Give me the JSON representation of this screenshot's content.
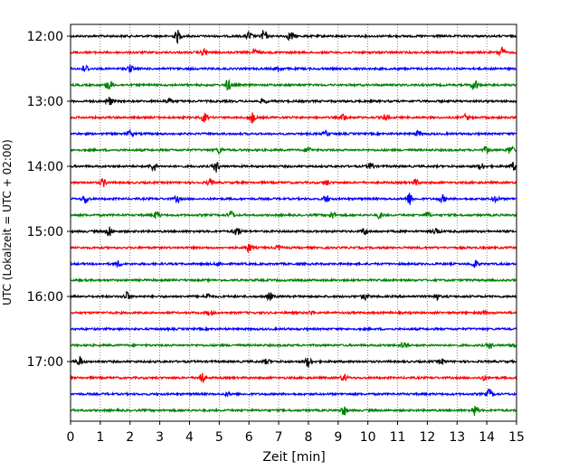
{
  "chart_data": {
    "type": "line",
    "xlabel": "Zeit  [min]",
    "ylabel": "UTC (Lokalzeit = UTC + 02:00)",
    "xlim": [
      0,
      15
    ],
    "x_ticks": [
      "0",
      "1",
      "2",
      "3",
      "4",
      "5",
      "6",
      "7",
      "8",
      "9",
      "10",
      "11",
      "12",
      "13",
      "14",
      "15"
    ],
    "y_ticks": [
      "12:00",
      "13:00",
      "14:00",
      "15:00",
      "16:00",
      "17:00"
    ],
    "grid": "vertical dotted at each minute",
    "row_interval_min": 15,
    "start": "12:00",
    "color_cycle": [
      "#000000",
      "#ff0000",
      "#0000ff",
      "#008000"
    ],
    "traces": [
      {
        "start": "12:00",
        "color": "#000000",
        "events": [
          [
            3.6,
            1.0
          ],
          [
            6.5,
            1.0
          ],
          [
            6.0,
            0.7
          ],
          [
            7.4,
            0.8
          ]
        ]
      },
      {
        "start": "12:15",
        "color": "#ff0000",
        "events": [
          [
            4.5,
            0.6
          ],
          [
            6.2,
            0.5
          ],
          [
            14.5,
            1.0
          ]
        ]
      },
      {
        "start": "12:30",
        "color": "#0000ff",
        "events": [
          [
            0.5,
            0.6
          ],
          [
            2.0,
            0.6
          ],
          [
            7.0,
            0.5
          ]
        ]
      },
      {
        "start": "12:45",
        "color": "#008000",
        "events": [
          [
            1.3,
            0.9
          ],
          [
            5.3,
            0.9
          ],
          [
            13.6,
            0.9
          ]
        ]
      },
      {
        "start": "13:00",
        "color": "#000000",
        "events": [
          [
            1.3,
            0.8
          ],
          [
            3.3,
            0.5
          ],
          [
            6.5,
            0.4
          ]
        ]
      },
      {
        "start": "13:15",
        "color": "#ff0000",
        "events": [
          [
            4.5,
            0.7
          ],
          [
            6.1,
            0.9
          ],
          [
            9.2,
            0.6
          ],
          [
            10.6,
            0.5
          ],
          [
            13.3,
            0.5
          ]
        ]
      },
      {
        "start": "13:30",
        "color": "#0000ff",
        "events": [
          [
            2.0,
            0.5
          ],
          [
            8.6,
            0.4
          ],
          [
            11.7,
            0.4
          ]
        ]
      },
      {
        "start": "13:45",
        "color": "#008000",
        "events": [
          [
            5.0,
            0.5
          ],
          [
            8.0,
            0.5
          ],
          [
            14.0,
            0.5
          ],
          [
            14.8,
            0.7
          ]
        ]
      },
      {
        "start": "14:00",
        "color": "#000000",
        "events": [
          [
            2.8,
            0.8
          ],
          [
            4.9,
            0.9
          ],
          [
            10.1,
            0.6
          ],
          [
            13.8,
            0.5
          ],
          [
            14.9,
            0.6
          ]
        ]
      },
      {
        "start": "14:15",
        "color": "#ff0000",
        "events": [
          [
            1.1,
            0.6
          ],
          [
            4.7,
            0.5
          ],
          [
            8.6,
            0.5
          ],
          [
            11.6,
            0.5
          ]
        ]
      },
      {
        "start": "14:30",
        "color": "#0000ff",
        "events": [
          [
            0.5,
            0.7
          ],
          [
            3.6,
            0.5
          ],
          [
            8.6,
            0.6
          ],
          [
            11.4,
            1.0
          ],
          [
            12.5,
            0.6
          ],
          [
            14.3,
            0.6
          ]
        ]
      },
      {
        "start": "14:45",
        "color": "#008000",
        "events": [
          [
            2.9,
            0.6
          ],
          [
            5.4,
            0.7
          ],
          [
            8.8,
            0.6
          ],
          [
            10.4,
            0.5
          ],
          [
            12.0,
            0.5
          ]
        ]
      },
      {
        "start": "15:00",
        "color": "#000000",
        "events": [
          [
            1.3,
            1.0
          ],
          [
            5.6,
            0.8
          ],
          [
            9.9,
            0.6
          ],
          [
            12.3,
            0.5
          ]
        ]
      },
      {
        "start": "15:15",
        "color": "#ff0000",
        "events": [
          [
            6.0,
            0.7
          ],
          [
            7.0,
            0.4
          ]
        ]
      },
      {
        "start": "15:30",
        "color": "#0000ff",
        "events": [
          [
            1.6,
            0.5
          ],
          [
            5.0,
            0.3
          ],
          [
            13.6,
            0.6
          ]
        ]
      },
      {
        "start": "15:45",
        "color": "#008000",
        "events": []
      },
      {
        "start": "16:00",
        "color": "#000000",
        "events": [
          [
            1.9,
            0.7
          ],
          [
            4.6,
            0.5
          ],
          [
            6.7,
            0.6
          ],
          [
            9.9,
            0.5
          ],
          [
            12.3,
            0.5
          ]
        ]
      },
      {
        "start": "16:15",
        "color": "#ff0000",
        "events": [
          [
            4.7,
            0.3
          ],
          [
            8.1,
            0.3
          ],
          [
            13.9,
            0.3
          ]
        ]
      },
      {
        "start": "16:30",
        "color": "#0000ff",
        "events": []
      },
      {
        "start": "16:45",
        "color": "#008000",
        "events": [
          [
            11.2,
            0.6
          ],
          [
            14.1,
            0.5
          ],
          [
            14.9,
            0.4
          ]
        ]
      },
      {
        "start": "17:00",
        "color": "#000000",
        "events": [
          [
            0.3,
            0.8
          ],
          [
            6.6,
            0.4
          ],
          [
            8.0,
            0.9
          ],
          [
            12.5,
            0.4
          ]
        ]
      },
      {
        "start": "17:15",
        "color": "#ff0000",
        "events": [
          [
            4.4,
            1.0
          ],
          [
            9.2,
            0.6
          ],
          [
            13.9,
            0.4
          ]
        ]
      },
      {
        "start": "17:30",
        "color": "#0000ff",
        "events": [
          [
            14.1,
            0.8
          ],
          [
            5.3,
            0.3
          ]
        ]
      },
      {
        "start": "17:45",
        "color": "#008000",
        "events": [
          [
            9.2,
            0.8
          ],
          [
            13.6,
            0.9
          ]
        ]
      }
    ]
  }
}
